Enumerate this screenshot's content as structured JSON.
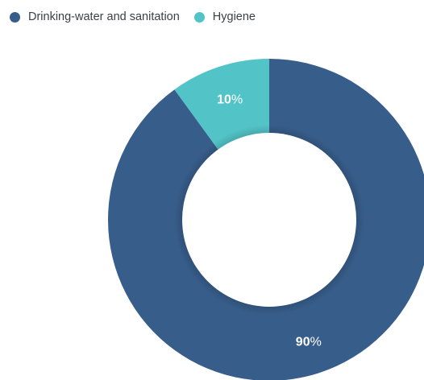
{
  "chart_data": {
    "type": "pie",
    "donut": true,
    "categories": [
      "Drinking-water and sanitation",
      "Hygiene"
    ],
    "values": [
      90,
      10
    ],
    "value_suffix": "%",
    "colors": [
      "#375d8a",
      "#52c3c6"
    ],
    "legend_placement": "top-left",
    "title": ""
  },
  "legend": {
    "items": [
      {
        "label": "Drinking-water and sanitation",
        "color": "#375d8a"
      },
      {
        "label": "Hygiene",
        "color": "#52c3c6"
      }
    ]
  }
}
